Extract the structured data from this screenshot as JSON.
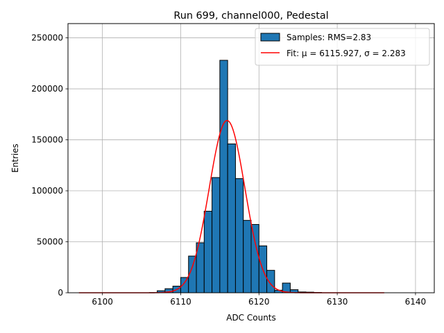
{
  "chart_data": {
    "type": "bar",
    "title": "Run 699, channel000, Pedestal",
    "xlabel": "ADC Counts",
    "ylabel": "Entries",
    "xlim": [
      6095.6,
      6142.4
    ],
    "ylim": [
      0,
      264000
    ],
    "xticks": [
      6100,
      6110,
      6120,
      6130,
      6140
    ],
    "yticks": [
      0,
      50000,
      100000,
      150000,
      200000,
      250000
    ],
    "grid": true,
    "legend_position": "top-right",
    "histogram": {
      "name": "Samples: RMS=2.83",
      "color": "#1f77b4",
      "bin_width": 1,
      "bins": [
        {
          "left": 6106,
          "count": 200
        },
        {
          "left": 6107,
          "count": 2000
        },
        {
          "left": 6108,
          "count": 4000
        },
        {
          "left": 6109,
          "count": 6500
        },
        {
          "left": 6110,
          "count": 15000
        },
        {
          "left": 6111,
          "count": 36000
        },
        {
          "left": 6112,
          "count": 49000
        },
        {
          "left": 6113,
          "count": 80000
        },
        {
          "left": 6114,
          "count": 113000
        },
        {
          "left": 6115,
          "count": 228000
        },
        {
          "left": 6116,
          "count": 146000
        },
        {
          "left": 6117,
          "count": 112000
        },
        {
          "left": 6118,
          "count": 71000
        },
        {
          "left": 6119,
          "count": 67000
        },
        {
          "left": 6120,
          "count": 46000
        },
        {
          "left": 6121,
          "count": 22000
        },
        {
          "left": 6122,
          "count": 2500
        },
        {
          "left": 6123,
          "count": 9500
        },
        {
          "left": 6124,
          "count": 3000
        },
        {
          "left": 6125,
          "count": 800
        },
        {
          "left": 6126,
          "count": 600
        },
        {
          "left": 6127,
          "count": 300
        }
      ]
    },
    "fit": {
      "name": "Fit: μ = 6115.927, σ = 2.283",
      "color": "#ff0000",
      "mu": 6115.927,
      "sigma": 2.283,
      "amplitude": 169000,
      "x_range": [
        6097,
        6136
      ]
    }
  }
}
